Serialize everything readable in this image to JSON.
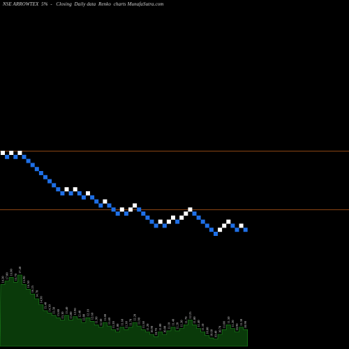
{
  "header": {
    "title": "NSE ARROWTEX  5%  -   Closing  Daily data  Renko  charts MunafaSutra.com"
  },
  "colors": {
    "background": "#000000",
    "up_brick": "#ffffff",
    "down_brick": "#1e6fe6",
    "reference_line": "#8b4513",
    "volume_fill": "#0a3a0a",
    "volume_stroke": "#1f8f1f"
  },
  "chart_data": {
    "type": "renko",
    "title": "NSE ARROWTEX  5%  -   Closing  Daily data  Renko  charts MunafaSutra.com",
    "brick_size_percent": 5,
    "reference_levels": [
      "upper",
      "lower"
    ],
    "bricks": [
      {
        "dir": "up",
        "level": 0
      },
      {
        "dir": "down",
        "level": -1
      },
      {
        "dir": "up",
        "level": 0
      },
      {
        "dir": "down",
        "level": -1
      },
      {
        "dir": "up",
        "level": 0
      },
      {
        "dir": "down",
        "level": -1
      },
      {
        "dir": "down",
        "level": -2
      },
      {
        "dir": "down",
        "level": -3
      },
      {
        "dir": "down",
        "level": -4
      },
      {
        "dir": "down",
        "level": -5
      },
      {
        "dir": "down",
        "level": -6
      },
      {
        "dir": "down",
        "level": -7
      },
      {
        "dir": "down",
        "level": -8
      },
      {
        "dir": "down",
        "level": -9
      },
      {
        "dir": "down",
        "level": -10
      },
      {
        "dir": "up",
        "level": -9
      },
      {
        "dir": "down",
        "level": -10
      },
      {
        "dir": "up",
        "level": -9
      },
      {
        "dir": "down",
        "level": -10
      },
      {
        "dir": "down",
        "level": -11
      },
      {
        "dir": "up",
        "level": -10
      },
      {
        "dir": "down",
        "level": -11
      },
      {
        "dir": "down",
        "level": -12
      },
      {
        "dir": "down",
        "level": -13
      },
      {
        "dir": "up",
        "level": -12
      },
      {
        "dir": "down",
        "level": -13
      },
      {
        "dir": "down",
        "level": -14
      },
      {
        "dir": "down",
        "level": -15
      },
      {
        "dir": "up",
        "level": -14
      },
      {
        "dir": "down",
        "level": -15
      },
      {
        "dir": "up",
        "level": -14
      },
      {
        "dir": "up",
        "level": -13
      },
      {
        "dir": "down",
        "level": -14
      },
      {
        "dir": "down",
        "level": -15
      },
      {
        "dir": "down",
        "level": -16
      },
      {
        "dir": "down",
        "level": -17
      },
      {
        "dir": "down",
        "level": -18
      },
      {
        "dir": "up",
        "level": -17
      },
      {
        "dir": "down",
        "level": -18
      },
      {
        "dir": "up",
        "level": -17
      },
      {
        "dir": "up",
        "level": -16
      },
      {
        "dir": "down",
        "level": -17
      },
      {
        "dir": "up",
        "level": -16
      },
      {
        "dir": "up",
        "level": -15
      },
      {
        "dir": "up",
        "level": -14
      },
      {
        "dir": "down",
        "level": -15
      },
      {
        "dir": "down",
        "level": -16
      },
      {
        "dir": "down",
        "level": -17
      },
      {
        "dir": "down",
        "level": -18
      },
      {
        "dir": "down",
        "level": -19
      },
      {
        "dir": "down",
        "level": -20
      },
      {
        "dir": "up",
        "level": -19
      },
      {
        "dir": "up",
        "level": -18
      },
      {
        "dir": "up",
        "level": -17
      },
      {
        "dir": "down",
        "level": -18
      },
      {
        "dir": "down",
        "level": -19
      },
      {
        "dir": "up",
        "level": -18
      },
      {
        "dir": "down",
        "level": -19
      }
    ],
    "volume_profile": [
      52,
      55,
      58,
      54,
      60,
      52,
      48,
      44,
      40,
      35,
      30,
      28,
      26,
      24,
      22,
      26,
      22,
      25,
      23,
      20,
      24,
      21,
      18,
      16,
      20,
      17,
      14,
      12,
      16,
      14,
      16,
      20,
      17,
      14,
      12,
      10,
      8,
      12,
      10,
      13,
      16,
      13,
      15,
      18,
      22,
      18,
      15,
      12,
      9,
      7,
      6,
      10,
      14,
      18,
      15,
      12,
      16,
      14
    ],
    "price_labels": [
      "14.30",
      "17.00",
      "16.00",
      "15.70",
      "17.40",
      "15.90",
      "16.30",
      "16.25",
      "14.70",
      "14.90",
      "13.40",
      "14.30",
      "13.50",
      "13.80",
      "13.10",
      "13.40",
      "13.00",
      "12.90",
      "12.40",
      "12.80",
      "12.10",
      "12.60",
      "11.90",
      "12.30",
      "11.80",
      "11.40",
      "11.20",
      "11.00",
      "11.60",
      "11.30",
      "11.70",
      "12.20",
      "11.90",
      "11.50",
      "11.20",
      "10.90",
      "10.70",
      "11.00",
      "10.80",
      "11.10",
      "11.40",
      "11.20",
      "11.30",
      "11.70",
      "12.25",
      "11.80",
      "11.40",
      "11.10",
      "10.80",
      "10.60",
      "10.40",
      "10.70",
      "11.00",
      "11.50",
      "11.20",
      "10.90",
      "11.30",
      "10.90"
    ]
  }
}
